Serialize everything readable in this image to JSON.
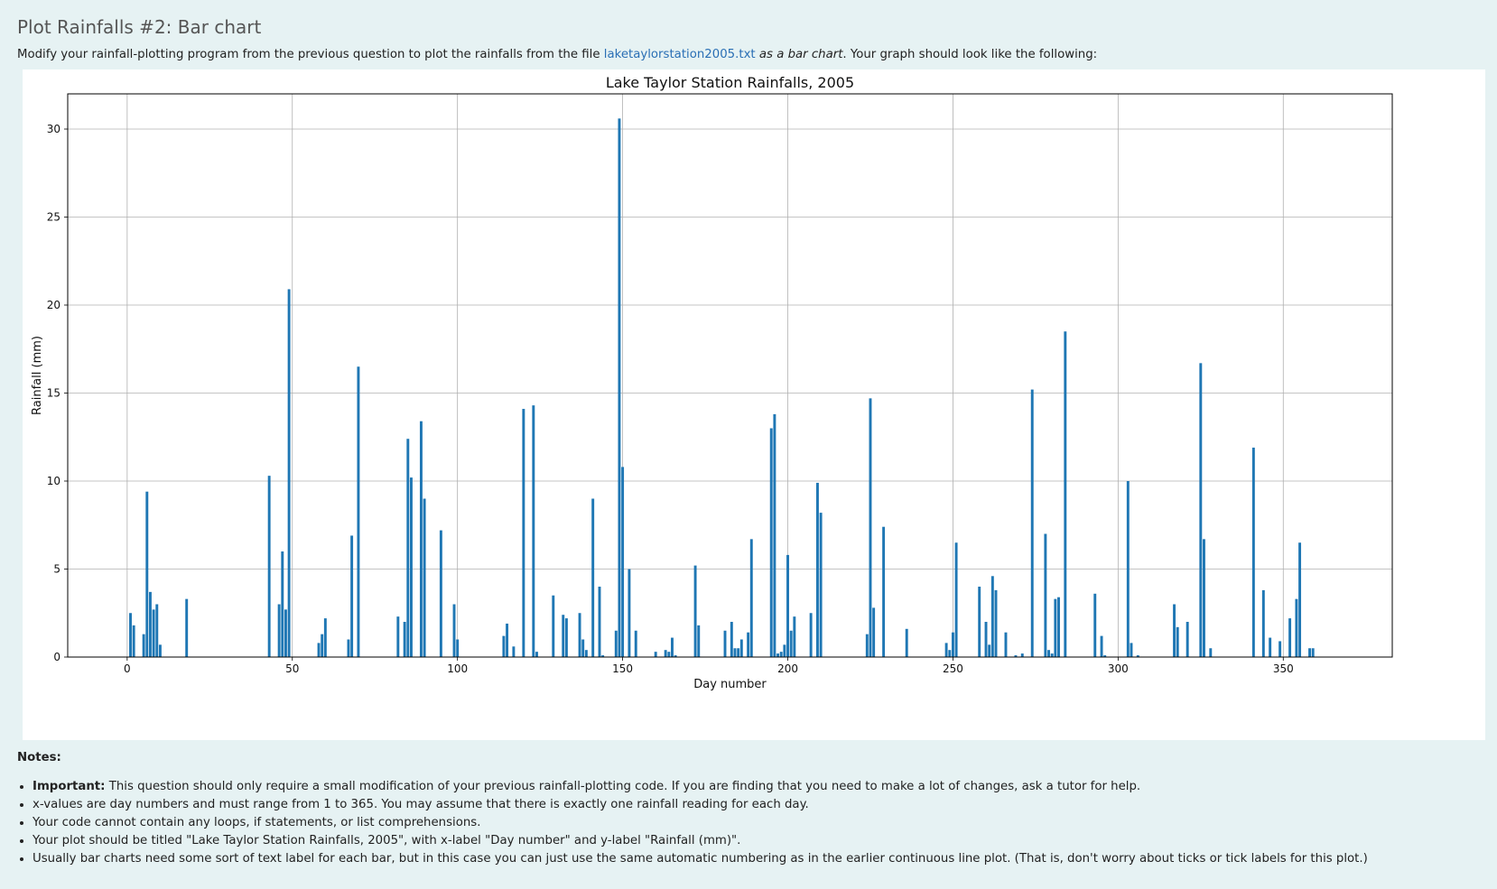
{
  "page": {
    "title": "Plot Rainfalls #2: Bar chart",
    "intro_before": "Modify your rainfall-plotting program from the previous question to plot the rainfalls from the file ",
    "intro_link": "laketaylorstation2005.txt",
    "intro_em": "as a bar chart",
    "intro_after": ". Your graph should look like the following:"
  },
  "notes": {
    "heading": "Notes:",
    "items": [
      {
        "bold": "Important:",
        "text": " This question should only require a small modification of your previous rainfall-plotting code. If you are finding that you need to make a lot of changes, ask a tutor for help."
      },
      {
        "bold": "",
        "text": "x-values are day numbers and must range from 1 to 365. You may assume that there is exactly one rainfall reading for each day."
      },
      {
        "bold": "",
        "text": "Your code cannot contain any loops, if statements, or list comprehensions."
      },
      {
        "bold": "",
        "text": "Your plot should be titled \"Lake Taylor Station Rainfalls, 2005\", with x-label \"Day number\" and y-label \"Rainfall (mm)\"."
      },
      {
        "bold": "",
        "text": "Usually bar charts need some sort of text label for each bar, but in this case you can just use the same automatic numbering as in the earlier continuous line plot. (That is, don't worry about ticks or tick labels for this plot.)"
      }
    ]
  },
  "colors": {
    "bar": "#1f77b4",
    "grid": "#b0b0b0",
    "background": "#e6f2f3"
  },
  "chart_data": {
    "type": "bar",
    "title": "Lake Taylor Station Rainfalls, 2005",
    "xlabel": "Day number",
    "ylabel": "Rainfall (mm)",
    "xlim": [
      -18,
      383
    ],
    "ylim": [
      0,
      32
    ],
    "xticks": [
      0,
      50,
      100,
      150,
      200,
      250,
      300,
      350
    ],
    "yticks": [
      0,
      5,
      10,
      15,
      20,
      25,
      30
    ],
    "grid": true,
    "bar_width": 0.8,
    "x": [
      1,
      2,
      5,
      6,
      7,
      8,
      9,
      10,
      18,
      43,
      46,
      47,
      48,
      49,
      58,
      59,
      60,
      67,
      68,
      70,
      82,
      84,
      85,
      86,
      89,
      90,
      95,
      99,
      100,
      114,
      115,
      117,
      120,
      123,
      124,
      129,
      132,
      133,
      137,
      138,
      139,
      141,
      143,
      144,
      148,
      149,
      150,
      152,
      154,
      160,
      163,
      164,
      165,
      166,
      172,
      173,
      181,
      183,
      184,
      185,
      186,
      188,
      189,
      195,
      196,
      197,
      198,
      199,
      200,
      201,
      202,
      207,
      209,
      210,
      224,
      225,
      226,
      229,
      236,
      248,
      249,
      250,
      251,
      258,
      260,
      261,
      262,
      263,
      266,
      269,
      271,
      274,
      278,
      279,
      280,
      281,
      282,
      284,
      293,
      295,
      296,
      303,
      304,
      306,
      317,
      318,
      321,
      325,
      326,
      328,
      341,
      344,
      346,
      349,
      352,
      354,
      355,
      358,
      359
    ],
    "values": [
      2.5,
      1.8,
      1.3,
      9.4,
      3.7,
      2.7,
      3.0,
      0.7,
      3.3,
      10.3,
      3.0,
      6.0,
      2.7,
      20.9,
      0.8,
      1.3,
      2.2,
      1.0,
      6.9,
      16.5,
      2.3,
      2.0,
      12.4,
      10.2,
      13.4,
      9.0,
      7.2,
      3.0,
      1.0,
      1.2,
      1.9,
      0.6,
      14.1,
      14.3,
      0.3,
      3.5,
      2.4,
      2.2,
      2.5,
      1.0,
      0.4,
      9.0,
      4.0,
      0.1,
      1.5,
      30.6,
      10.8,
      5.0,
      1.5,
      0.3,
      0.4,
      0.3,
      1.1,
      0.1,
      5.2,
      1.8,
      1.5,
      2.0,
      0.5,
      0.5,
      1.0,
      1.4,
      6.7,
      13.0,
      13.8,
      0.2,
      0.3,
      0.7,
      5.8,
      1.5,
      2.3,
      2.5,
      9.9,
      8.2,
      1.3,
      14.7,
      2.8,
      7.4,
      1.6,
      0.8,
      0.4,
      1.4,
      6.5,
      4.0,
      2.0,
      0.7,
      4.6,
      3.8,
      1.4,
      0.1,
      0.2,
      15.2,
      7.0,
      0.4,
      0.2,
      3.3,
      3.4,
      18.5,
      3.6,
      1.2,
      0.1,
      10.0,
      0.8,
      0.1,
      3.0,
      1.7,
      2.0,
      16.7,
      6.7,
      0.5,
      11.9,
      3.8,
      1.1,
      0.9,
      2.2,
      3.3,
      6.5,
      0.5,
      0.5
    ]
  }
}
